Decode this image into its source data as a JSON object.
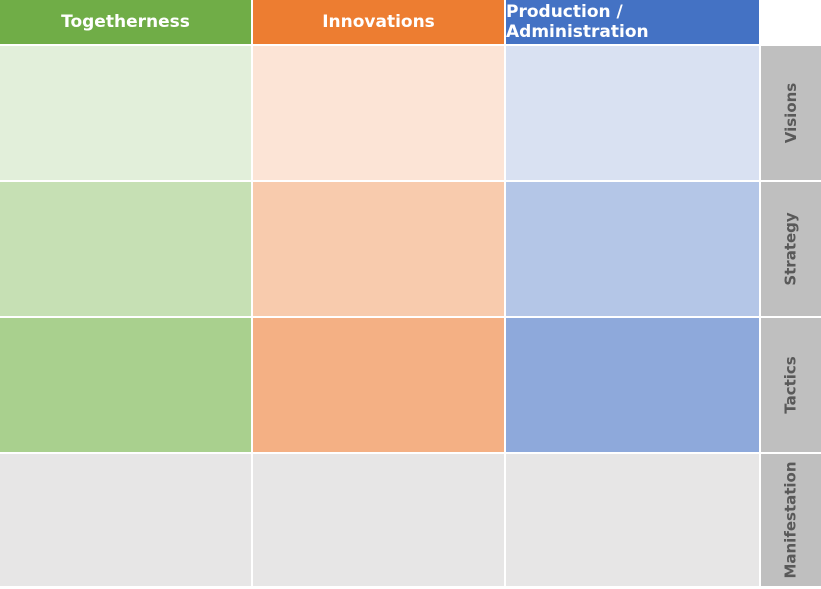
{
  "columns": [
    {
      "label": "Togetherness",
      "color": "#70ad47"
    },
    {
      "label": "Innovations",
      "color": "#ed7d31"
    },
    {
      "label": "Production / Administration",
      "color": "#4472c4"
    }
  ],
  "rows": [
    {
      "label": "Visions",
      "cell_colors": [
        "#e2efda",
        "#fce4d6",
        "#d9e1f2"
      ]
    },
    {
      "label": "Strategy",
      "cell_colors": [
        "#c6e0b4",
        "#f8cbad",
        "#b4c6e7"
      ]
    },
    {
      "label": "Tactics",
      "cell_colors": [
        "#a9d08e",
        "#f4b084",
        "#8ea9db"
      ]
    },
    {
      "label": "Manifestation",
      "cell_colors": [
        "#e7e6e6",
        "#e7e6e6",
        "#e7e6e6"
      ]
    }
  ],
  "row_label_color": "#bfbfbf"
}
